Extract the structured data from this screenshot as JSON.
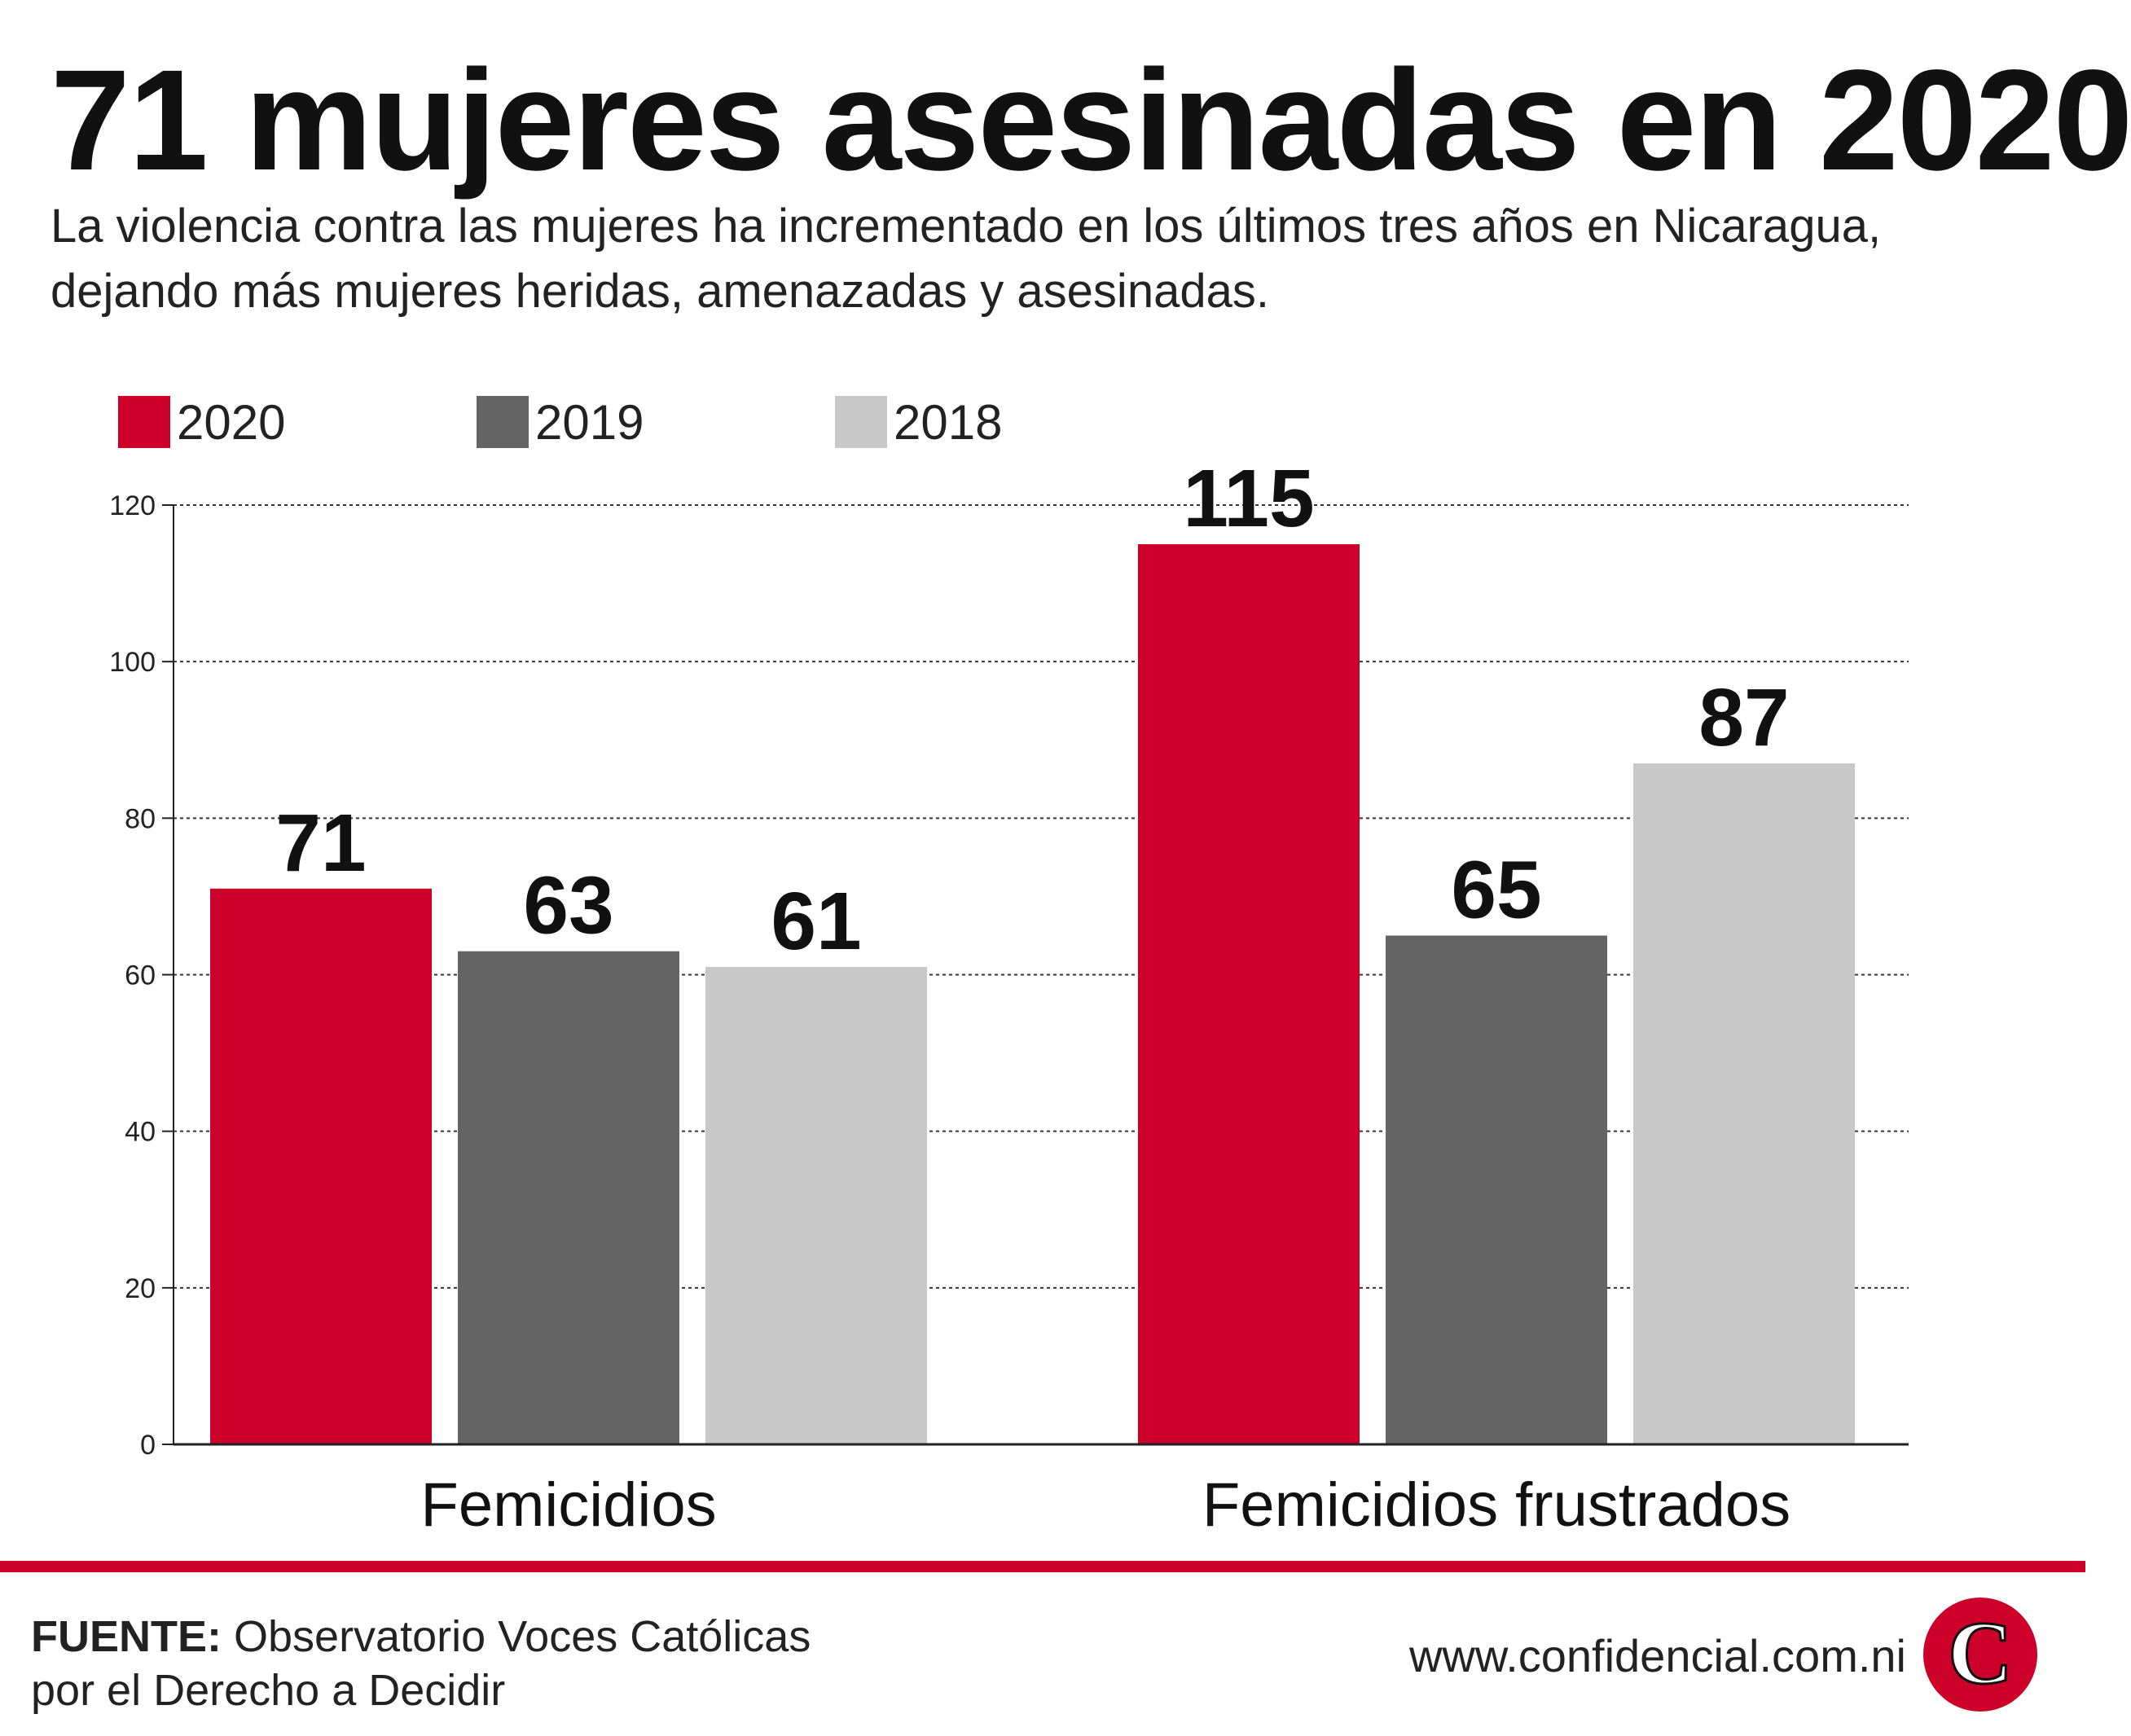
{
  "header": {
    "title": "71 mujeres asesinadas en 2020",
    "subtitle": "La violencia contra las mujeres ha incrementado en los últimos tres años en Nicaragua, dejando más mujeres heridas, amenazadas y asesinadas."
  },
  "footer": {
    "source_label": "FUENTE:",
    "source_text": "Observatorio Voces Católicas por el Derecho a Decidir",
    "website": "www.confidencial.com.ni",
    "logo_letter": "C"
  },
  "colors": {
    "2020": "#cc0029",
    "2019": "#646464",
    "2018": "#c8c8c8",
    "accent": "#cc0029"
  },
  "chart_data": {
    "type": "bar",
    "title": "",
    "xlabel": "",
    "ylabel": "",
    "categories": [
      "Femicidios",
      "Femicidios frustrados"
    ],
    "series": [
      {
        "name": "2020",
        "values": [
          71,
          115
        ],
        "color": "#cc0029"
      },
      {
        "name": "2019",
        "values": [
          63,
          65
        ],
        "color": "#646464"
      },
      {
        "name": "2018",
        "values": [
          61,
          87
        ],
        "color": "#c8c8c8"
      }
    ],
    "ylim": [
      0,
      120
    ],
    "yticks": [
      0,
      20,
      40,
      60,
      80,
      100,
      120
    ],
    "grid": true,
    "legend_position": "top-left",
    "data_labels": true
  }
}
